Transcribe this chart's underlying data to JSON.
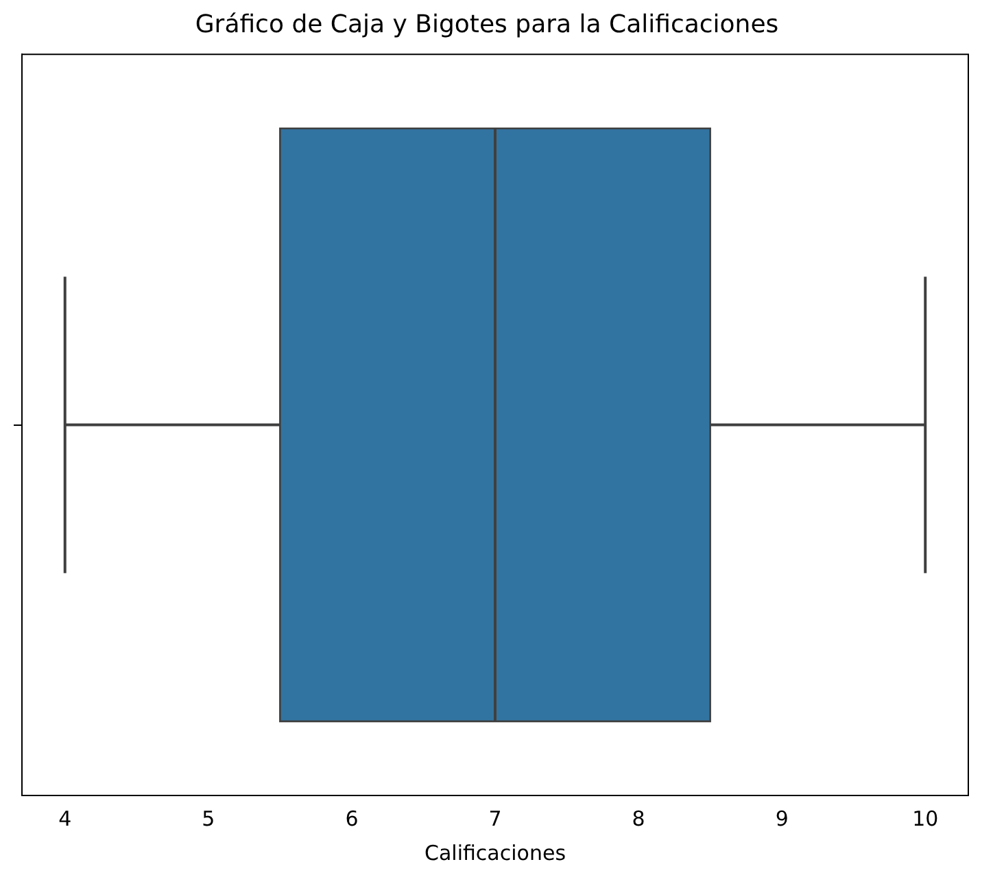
{
  "chart_data": {
    "type": "box",
    "title": "Gráfico de Caja y Bigotes para la Calificaciones",
    "xlabel": "Calificaciones",
    "orientation": "horizontal",
    "categories": [
      null
    ],
    "boxes": [
      {
        "low": 4,
        "q1": 5.5,
        "median": 7,
        "q3": 8.5,
        "high": 10
      }
    ],
    "color": "#3274a1",
    "xlim": [
      3.7,
      10.3
    ],
    "xticks": [
      4,
      5,
      6,
      7,
      8,
      9,
      10
    ]
  }
}
